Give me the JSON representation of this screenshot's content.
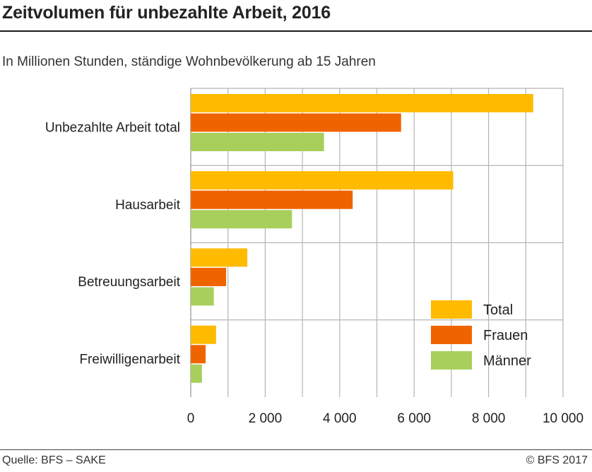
{
  "header": {
    "title": "Zeitvolumen für unbezahlte Arbeit, 2016",
    "subtitle": "In Millionen Stunden, ständige Wohnbevölkerung ab 15 Jahren"
  },
  "footer": {
    "source": "Quelle: BFS – SAKE",
    "copyright": "© BFS 2017"
  },
  "chart_data": {
    "type": "bar",
    "orientation": "horizontal",
    "categories": [
      "Unbezahlte Arbeit total",
      "Hausarbeit",
      "Betreuungsarbeit",
      "Freiwilligenarbeit"
    ],
    "series": [
      {
        "name": "Total",
        "color": "#FFBB00",
        "values": [
          9200,
          7050,
          1520,
          680
        ]
      },
      {
        "name": "Frauen",
        "color": "#F06400",
        "values": [
          5650,
          4350,
          950,
          400
        ]
      },
      {
        "name": "Männer",
        "color": "#A8CF5C",
        "values": [
          3580,
          2720,
          620,
          300
        ]
      }
    ],
    "xlim": [
      0,
      10000
    ],
    "x_ticks": [
      0,
      2000,
      4000,
      6000,
      8000,
      10000
    ],
    "x_tick_labels": [
      "0",
      "2 000",
      "4 000",
      "6 000",
      "8 000",
      "10 000"
    ],
    "grid": true,
    "legend_position": "bottom-right"
  }
}
